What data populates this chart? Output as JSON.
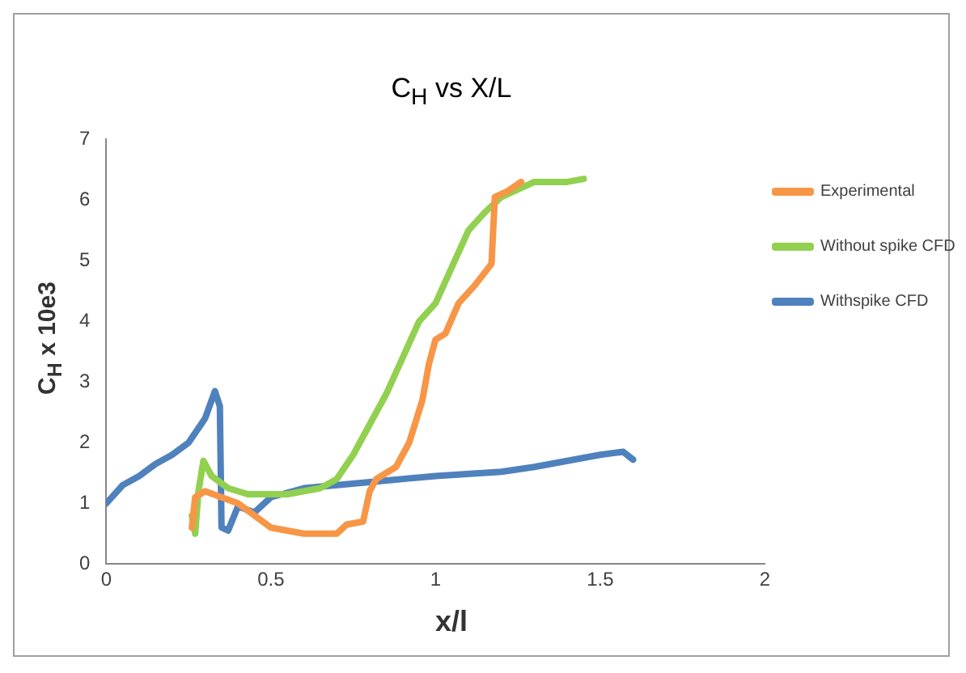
{
  "chart_data": {
    "type": "line",
    "title": "C$_{H}$ vs X/L",
    "xlabel": "x/l",
    "ylabel": "C$_{H}$ x 10e3",
    "xlim": [
      0,
      2
    ],
    "xticks": [
      0,
      0.5,
      1,
      1.5,
      2
    ],
    "ylim": [
      0,
      7
    ],
    "yticks": [
      0,
      1,
      2,
      3,
      4,
      5,
      6,
      7
    ],
    "grid": false,
    "legend": "right",
    "marker": "none",
    "line_style": "solid",
    "series": [
      {
        "name": "Experimental",
        "color": "#f79646",
        "x": [
          0.26,
          0.27,
          0.3,
          0.4,
          0.45,
          0.5,
          0.6,
          0.7,
          0.73,
          0.78,
          0.8,
          0.82,
          0.88,
          0.92,
          0.96,
          0.98,
          1.0,
          1.03,
          1.07,
          1.12,
          1.17,
          1.18,
          1.22,
          1.26
        ],
        "values": [
          0.6,
          1.1,
          1.2,
          1.0,
          0.8,
          0.6,
          0.5,
          0.5,
          0.65,
          0.7,
          1.2,
          1.4,
          1.6,
          2.0,
          2.7,
          3.3,
          3.7,
          3.8,
          4.3,
          4.6,
          4.95,
          6.05,
          6.15,
          6.3
        ]
      },
      {
        "name": "Without spike CFD",
        "color": "#92d050",
        "x": [
          0.26,
          0.27,
          0.28,
          0.295,
          0.32,
          0.37,
          0.43,
          0.55,
          0.65,
          0.7,
          0.75,
          0.8,
          0.85,
          0.9,
          0.95,
          1.0,
          1.05,
          1.1,
          1.15,
          1.2,
          1.3,
          1.4,
          1.45
        ],
        "values": [
          0.8,
          0.5,
          1.2,
          1.7,
          1.45,
          1.25,
          1.15,
          1.15,
          1.25,
          1.4,
          1.8,
          2.3,
          2.8,
          3.4,
          4.0,
          4.3,
          4.9,
          5.5,
          5.8,
          6.05,
          6.3,
          6.3,
          6.35
        ]
      },
      {
        "name": "Withspike CFD",
        "color": "#4f81bd",
        "x": [
          0,
          0.05,
          0.1,
          0.15,
          0.2,
          0.25,
          0.3,
          0.33,
          0.345,
          0.35,
          0.37,
          0.4,
          0.45,
          0.5,
          0.6,
          0.8,
          1.0,
          1.2,
          1.3,
          1.4,
          1.5,
          1.57,
          1.6
        ],
        "values": [
          1.0,
          1.3,
          1.45,
          1.65,
          1.8,
          2.0,
          2.4,
          2.85,
          2.6,
          0.6,
          0.55,
          0.95,
          0.85,
          1.1,
          1.25,
          1.35,
          1.45,
          1.52,
          1.6,
          1.7,
          1.8,
          1.85,
          1.72
        ]
      }
    ]
  }
}
